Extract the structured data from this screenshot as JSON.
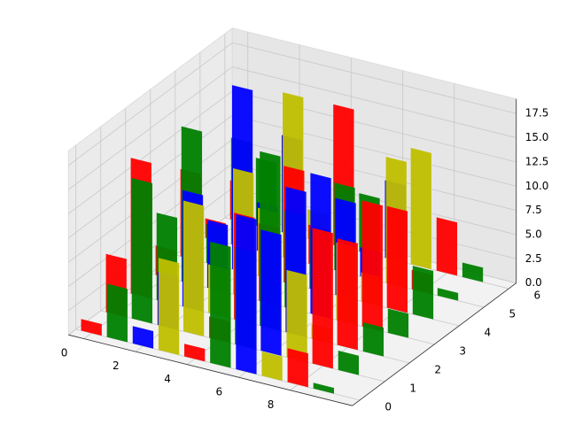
{
  "chart_data": {
    "type": "bar3d",
    "x": [
      0,
      1,
      2,
      3,
      4,
      5,
      6,
      7,
      8,
      9
    ],
    "color_cycle": [
      "#ff0000",
      "#008000",
      "#0000ff",
      "#bfbf00"
    ],
    "series": [
      {
        "y": 0,
        "values": [
          1.2,
          5.5,
          1.8,
          9.5,
          1.3,
          12.5,
          16,
          2.5,
          3.5,
          0.6
        ]
      },
      {
        "y": 1,
        "values": [
          6,
          14.5,
          5.5,
          13.5,
          2.2,
          10,
          12.5,
          9,
          14,
          2
        ]
      },
      {
        "y": 2,
        "values": [
          14,
          9,
          12,
          5,
          11,
          18,
          15,
          1.5,
          11,
          3
        ]
      },
      {
        "y": 3,
        "values": [
          3,
          16,
          7,
          13,
          8,
          10,
          14.5,
          8,
          13,
          2.5
        ]
      },
      {
        "y": 4,
        "values": [
          9,
          4,
          19,
          7,
          12,
          6,
          10,
          3,
          10.5,
          5
        ]
      },
      {
        "y": 5,
        "values": [
          2,
          11,
          5,
          17,
          4,
          9,
          3,
          13,
          2,
          0.8
        ]
      },
      {
        "y": 6,
        "values": [
          4,
          7,
          10,
          3,
          14.5,
          6,
          8,
          12,
          5.5,
          1.5
        ]
      }
    ],
    "xlim": [
      -0.6,
      10.4
    ],
    "ylim": [
      -0.3,
      6.3
    ],
    "zlim": [
      0,
      19
    ],
    "xticks": [
      0,
      2,
      4,
      6,
      8
    ],
    "yticks": [
      0,
      1,
      2,
      3,
      4,
      5,
      6
    ],
    "zticks": [
      {
        "value": 0,
        "label": "0.0"
      },
      2.5,
      {
        "value": 5,
        "label": "5.0"
      },
      7.5,
      {
        "value": 10,
        "label": "10.0"
      },
      12.5,
      {
        "value": 15,
        "label": "15.0"
      },
      17.5
    ],
    "grid": true
  }
}
